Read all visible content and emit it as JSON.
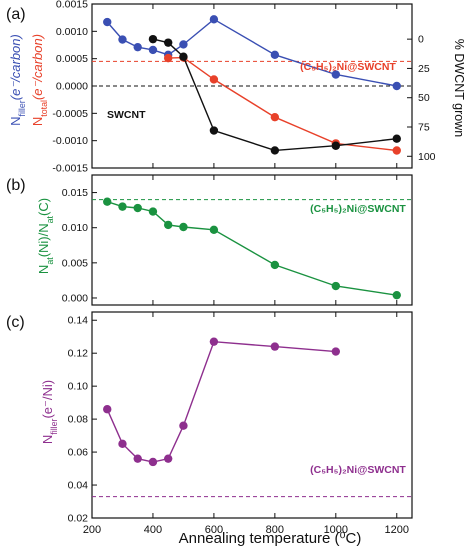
{
  "figure": {
    "xlabel": "Annealing temperature (⁰C)",
    "xticks": [
      200,
      400,
      600,
      800,
      1000,
      1200
    ],
    "xlim": [
      200,
      1250
    ]
  },
  "panels": [
    {
      "label": "(a)",
      "ylabel_left_parts": [
        {
          "text": "N",
          "color": "#3a4fb3"
        },
        {
          "text": "filler",
          "color": "#3a4fb3",
          "sub": true
        },
        {
          "text": "(e⁻/carbon)",
          "color": "#3a4fb3",
          "italic": true
        }
      ],
      "ylabel_left2_parts": [
        {
          "text": "N",
          "color": "#e8412a"
        },
        {
          "text": "total",
          "color": "#e8412a",
          "sub": true
        },
        {
          "text": "(e⁻/carbon)",
          "color": "#e8412a",
          "italic": true
        }
      ],
      "ylabel_right": "% DWCNT grown",
      "yticks_left": [
        "-0.0015",
        "-0.0010",
        "-0.0005",
        "0.0000",
        "0.0005",
        "0.0010",
        "0.0015"
      ],
      "yticks_right": [
        "0",
        "25",
        "50",
        "75",
        "100"
      ],
      "annotation_ref": "(C₅H₅)₂Ni@SWCNT",
      "annotation_swcnt": "SWCNT"
    },
    {
      "label": "(b)",
      "ylabel_left_parts": [
        {
          "text": "N",
          "color": "#1a9240"
        },
        {
          "text": "at",
          "color": "#1a9240",
          "sub": true
        },
        {
          "text": "(Ni)/N",
          "color": "#1a9240"
        },
        {
          "text": "at",
          "color": "#1a9240",
          "sub": true
        },
        {
          "text": "(C)",
          "color": "#1a9240"
        }
      ],
      "yticks_left": [
        "0.000",
        "0.005",
        "0.010",
        "0.015"
      ],
      "annotation_ref": "(C₅H₅)₂Ni@SWCNT"
    },
    {
      "label": "(c)",
      "ylabel_left_parts": [
        {
          "text": "N",
          "color": "#8e2f8e"
        },
        {
          "text": "filler",
          "color": "#8e2f8e",
          "sub": true
        },
        {
          "text": "(e⁻/Ni)",
          "color": "#8e2f8e"
        }
      ],
      "yticks_left": [
        "0.02",
        "0.04",
        "0.06",
        "0.08",
        "0.10",
        "0.12",
        "0.14"
      ],
      "annotation_ref": "(C₅H₅)₂Ni@SWCNT"
    }
  ],
  "chart_data": [
    {
      "type": "line",
      "xlabel": "Annealing temperature (⁰C)",
      "ylim": [
        -0.0015,
        0.0015
      ],
      "y2lim": [
        110,
        -30
      ],
      "series": [
        {
          "axis": "left",
          "color": "#3a4fb3",
          "x": [
            250,
            300,
            350,
            400,
            450,
            500,
            600,
            800,
            1000,
            1200
          ],
          "y": [
            0.00117,
            0.00085,
            0.00071,
            0.00066,
            0.00057,
            0.00076,
            0.00122,
            0.00057,
            0.00021,
            0.0
          ]
        },
        {
          "axis": "left",
          "color": "#e8412a",
          "x": [
            450,
            500,
            600,
            800,
            1000,
            1200
          ],
          "y": [
            0.00051,
            0.00052,
            0.00012,
            -0.00057,
            -0.00105,
            -0.00118
          ]
        },
        {
          "axis": "right",
          "color": "#111111",
          "x": [
            400,
            450,
            500,
            600,
            800,
            1000,
            1200
          ],
          "y": [
            0,
            3,
            15,
            78,
            95,
            91,
            85
          ]
        }
      ],
      "reference_lines": [
        {
          "axis": "left",
          "y": 0.00045,
          "color": "#e8412a",
          "style": "dashed"
        },
        {
          "axis": "left",
          "y": 0.0,
          "color": "#111111",
          "style": "dashed"
        }
      ]
    },
    {
      "type": "line",
      "ylim": [
        -0.001,
        0.0175
      ],
      "series": [
        {
          "color": "#1a9240",
          "x": [
            250,
            300,
            350,
            400,
            450,
            500,
            600,
            800,
            1000,
            1200
          ],
          "y": [
            0.0137,
            0.013,
            0.0128,
            0.0123,
            0.0104,
            0.0101,
            0.0097,
            0.0047,
            0.0017,
            0.0004
          ]
        }
      ],
      "reference_lines": [
        {
          "y": 0.014,
          "color": "#1a9240",
          "style": "dashed"
        }
      ]
    },
    {
      "type": "line",
      "ylim": [
        0.02,
        0.145
      ],
      "series": [
        {
          "color": "#8e2f8e",
          "x": [
            250,
            300,
            350,
            400,
            450,
            500,
            600,
            800,
            1000
          ],
          "y": [
            0.086,
            0.065,
            0.056,
            0.054,
            0.056,
            0.076,
            0.127,
            0.124,
            0.121
          ]
        }
      ],
      "reference_lines": [
        {
          "y": 0.033,
          "color": "#8e2f8e",
          "style": "dashed"
        }
      ]
    }
  ]
}
